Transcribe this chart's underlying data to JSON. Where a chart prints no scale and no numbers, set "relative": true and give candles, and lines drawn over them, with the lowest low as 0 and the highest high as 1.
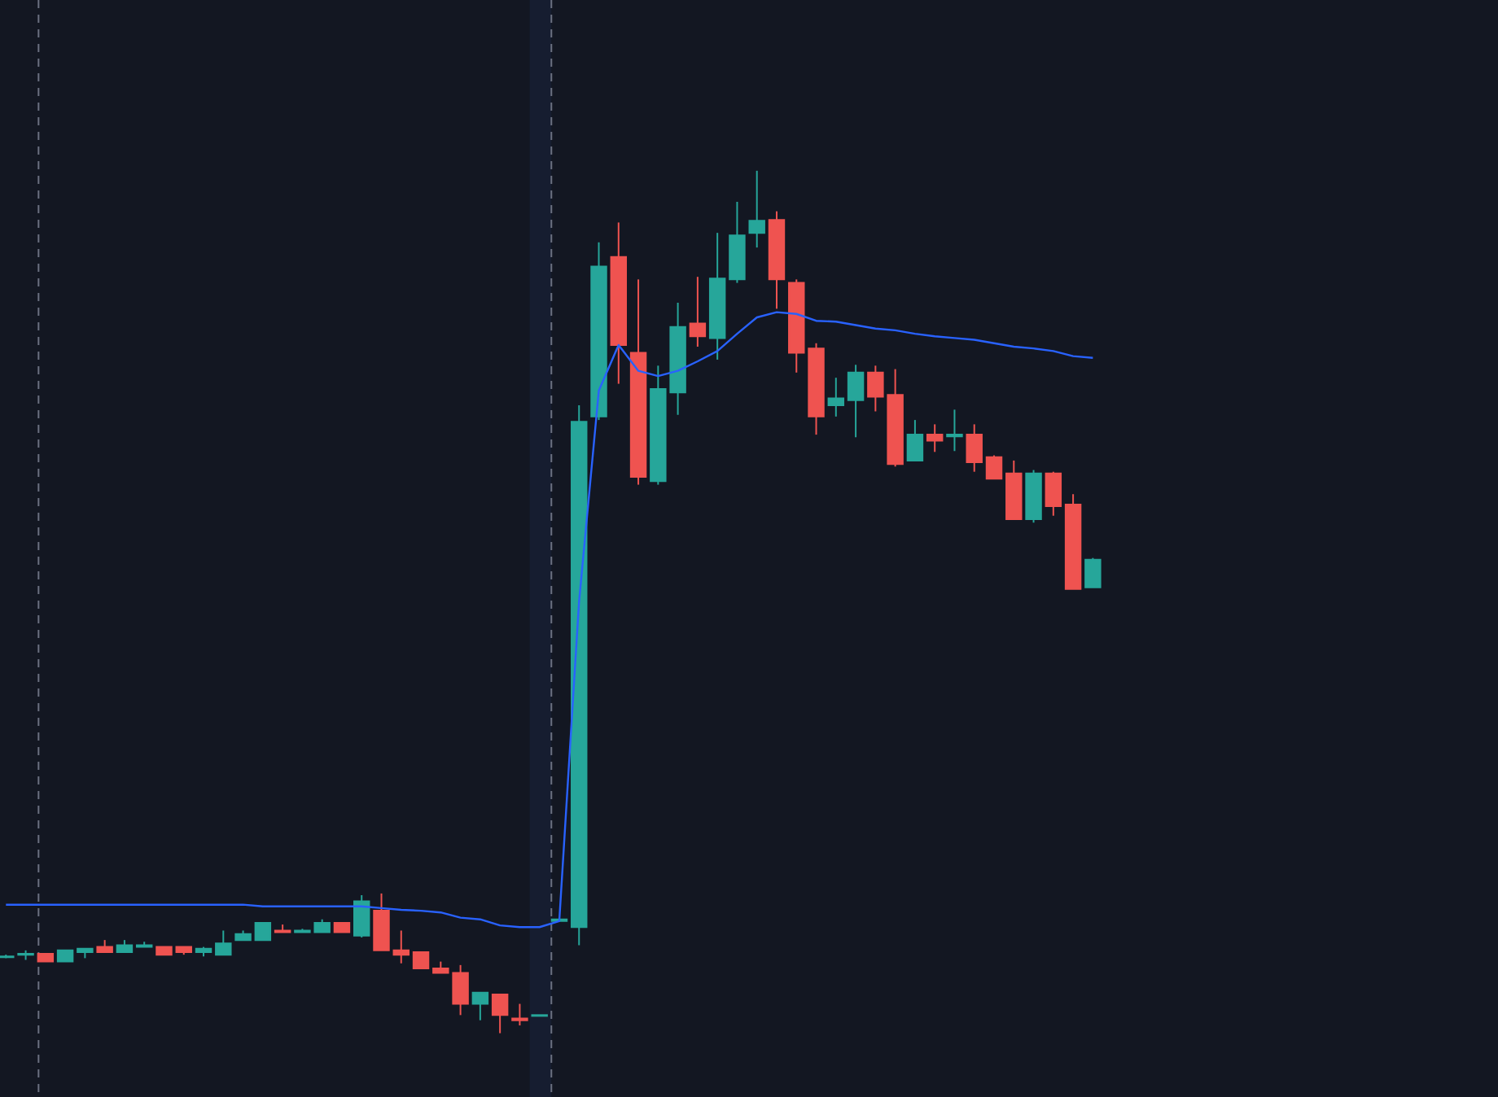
{
  "chart_data": {
    "type": "candlestick",
    "relative": true,
    "categories": [
      null,
      null,
      null,
      null,
      null,
      null,
      null,
      null,
      null,
      null,
      null,
      null,
      null,
      null,
      null,
      null,
      null,
      null,
      null,
      null,
      null,
      null,
      null,
      null,
      null,
      null,
      null,
      null,
      null,
      null,
      null,
      null,
      null,
      null,
      null,
      null,
      null,
      null,
      null,
      null,
      null,
      null,
      null,
      null,
      null,
      null,
      null,
      null,
      null,
      null,
      null,
      null,
      null,
      null,
      null,
      null
    ],
    "ohlc": [
      [
        0.088,
        0.091,
        0.087,
        0.089
      ],
      [
        0.091,
        0.096,
        0.085,
        0.092
      ],
      [
        0.092,
        0.092,
        0.083,
        0.083
      ],
      [
        0.083,
        0.096,
        0.083,
        0.096
      ],
      [
        0.094,
        0.098,
        0.087,
        0.098
      ],
      [
        0.1,
        0.108,
        0.094,
        0.094
      ],
      [
        0.094,
        0.108,
        0.094,
        0.102
      ],
      [
        0.1,
        0.106,
        0.1,
        0.102
      ],
      [
        0.1,
        0.1,
        0.091,
        0.091
      ],
      [
        0.1,
        0.1,
        0.091,
        0.094
      ],
      [
        0.094,
        0.1,
        0.089,
        0.098
      ],
      [
        0.091,
        0.119,
        0.091,
        0.104
      ],
      [
        0.108,
        0.119,
        0.108,
        0.115
      ],
      [
        0.108,
        0.128,
        0.108,
        0.128
      ],
      [
        0.119,
        0.126,
        0.117,
        0.117
      ],
      [
        0.117,
        0.121,
        0.117,
        0.119
      ],
      [
        0.117,
        0.132,
        0.117,
        0.128
      ],
      [
        0.128,
        0.128,
        0.117,
        0.117
      ],
      [
        0.113,
        0.16,
        0.111,
        0.153
      ],
      [
        0.142,
        0.162,
        0.096,
        0.096
      ],
      [
        0.096,
        0.119,
        0.081,
        0.091
      ],
      [
        0.094,
        0.094,
        0.075,
        0.075
      ],
      [
        0.075,
        0.083,
        0.07,
        0.07
      ],
      [
        0.07,
        0.079,
        0.021,
        0.034
      ],
      [
        0.034,
        0.047,
        0.015,
        0.047
      ],
      [
        0.045,
        0.045,
        0,
        0.021
      ],
      [
        0.017,
        0.034,
        0.009,
        0.015
      ],
      [
        0.02,
        0.021,
        0.02,
        0.021
      ],
      [
        0.13,
        0.132,
        0.13,
        0.132
      ],
      [
        0.123,
        0.728,
        0.102,
        0.709
      ],
      [
        0.715,
        0.917,
        0.711,
        0.889
      ],
      [
        0.9,
        0.94,
        0.753,
        0.798
      ],
      [
        0.789,
        0.874,
        0.636,
        0.645
      ],
      [
        0.64,
        0.774,
        0.636,
        0.747
      ],
      [
        0.743,
        0.847,
        0.717,
        0.819
      ],
      [
        0.823,
        0.877,
        0.796,
        0.808
      ],
      [
        0.806,
        0.928,
        0.781,
        0.875
      ],
      [
        0.874,
        0.964,
        0.87,
        0.925
      ],
      [
        0.928,
        1,
        0.911,
        0.942
      ],
      [
        0.943,
        0.953,
        0.84,
        0.874
      ],
      [
        0.87,
        0.874,
        0.766,
        0.789
      ],
      [
        0.794,
        0.8,
        0.694,
        0.715
      ],
      [
        0.728,
        0.76,
        0.715,
        0.736
      ],
      [
        0.734,
        0.775,
        0.691,
        0.766
      ],
      [
        0.766,
        0.774,
        0.721,
        0.738
      ],
      [
        0.74,
        0.77,
        0.657,
        0.66
      ],
      [
        0.664,
        0.711,
        0.664,
        0.694
      ],
      [
        0.694,
        0.706,
        0.674,
        0.687
      ],
      [
        0.692,
        0.723,
        0.675,
        0.694
      ],
      [
        0.694,
        0.706,
        0.651,
        0.662
      ],
      [
        0.668,
        0.67,
        0.643,
        0.643
      ],
      [
        0.649,
        0.664,
        0.596,
        0.596
      ],
      [
        0.596,
        0.653,
        0.592,
        0.649
      ],
      [
        0.649,
        0.651,
        0.6,
        0.611
      ],
      [
        0.613,
        0.625,
        0.515,
        0.515
      ],
      [
        0.517,
        0.551,
        0.517,
        0.549
      ]
    ],
    "colors": [
      "#26a69a",
      "#26a69a",
      "#ef5350",
      "#26a69a",
      "#26a69a",
      "#ef5350",
      "#26a69a",
      "#26a69a",
      "#ef5350",
      "#ef5350",
      "#26a69a",
      "#26a69a",
      "#26a69a",
      "#26a69a",
      "#ef5350",
      "#26a69a",
      "#26a69a",
      "#ef5350",
      "#26a69a",
      "#ef5350",
      "#ef5350",
      "#ef5350",
      "#ef5350",
      "#ef5350",
      "#26a69a",
      "#ef5350",
      "#ef5350",
      "#26a69a",
      "#26a69a",
      "#26a69a",
      "#26a69a",
      "#ef5350",
      "#ef5350",
      "#26a69a",
      "#26a69a",
      "#ef5350",
      "#26a69a",
      "#26a69a",
      "#26a69a",
      "#ef5350",
      "#ef5350",
      "#ef5350",
      "#26a69a",
      "#26a69a",
      "#ef5350",
      "#ef5350",
      "#26a69a",
      "#ef5350",
      "#26a69a",
      "#ef5350",
      "#ef5350",
      "#ef5350",
      "#26a69a",
      "#ef5350",
      "#ef5350",
      "#26a69a"
    ],
    "series": [
      {
        "type": "line",
        "color": "#2962ff",
        "values": [
          0.149,
          0.149,
          0.149,
          0.149,
          0.149,
          0.149,
          0.149,
          0.149,
          0.149,
          0.149,
          0.149,
          0.149,
          0.149,
          0.147,
          0.147,
          0.147,
          0.147,
          0.147,
          0.147,
          0.145,
          0.143,
          0.142,
          0.14,
          0.134,
          0.132,
          0.125,
          0.123,
          0.123,
          0.13,
          0.5,
          0.745,
          0.798,
          0.768,
          0.762,
          0.768,
          0.779,
          0.791,
          0.811,
          0.83,
          0.836,
          0.834,
          0.826,
          0.825,
          0.821,
          0.817,
          0.815,
          0.811,
          0.808,
          0.806,
          0.804,
          0.8,
          0.796,
          0.794,
          0.791,
          0.785,
          0.783
        ]
      }
    ]
  }
}
